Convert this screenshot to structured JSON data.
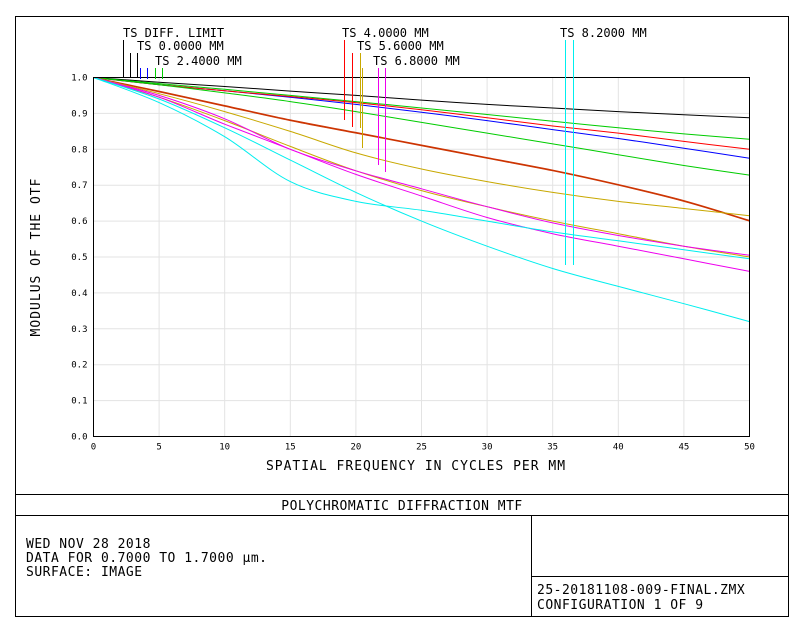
{
  "chart_data": {
    "type": "line",
    "title": "POLYCHROMATIC DIFFRACTION MTF",
    "xlabel": "SPATIAL FREQUENCY IN CYCLES PER MM",
    "ylabel": "MODULUS OF THE OTF",
    "xlim": [
      0,
      50
    ],
    "ylim": [
      0,
      1
    ],
    "grid": true,
    "x_ticks": [
      "0",
      "5",
      "10",
      "15",
      "20",
      "25",
      "30",
      "35",
      "40",
      "45",
      "50"
    ],
    "y_ticks": [
      "0.0",
      "0.1",
      "0.2",
      "0.3",
      "0.4",
      "0.5",
      "0.6",
      "0.7",
      "0.8",
      "0.9",
      "1.0"
    ],
    "x": [
      0,
      5,
      10,
      15,
      20,
      25,
      30,
      35,
      40,
      45,
      50
    ],
    "series": [
      {
        "color": "#000000",
        "values": [
          1.0,
          0.987,
          0.975,
          0.962,
          0.95,
          0.937,
          0.925,
          0.915,
          0.905,
          0.896,
          0.888
        ]
      },
      {
        "color": "#0000ff",
        "values": [
          1.0,
          0.98,
          0.963,
          0.945,
          0.925,
          0.903,
          0.88,
          0.855,
          0.83,
          0.803,
          0.775
        ]
      },
      {
        "color": "#ff0000",
        "values": [
          1.0,
          0.98,
          0.963,
          0.947,
          0.93,
          0.91,
          0.888,
          0.865,
          0.845,
          0.822,
          0.8
        ]
      },
      {
        "color": "#00cc00",
        "values": [
          1.0,
          0.983,
          0.967,
          0.95,
          0.933,
          0.915,
          0.897,
          0.878,
          0.86,
          0.843,
          0.828
        ]
      },
      {
        "color": "#00cc00",
        "values": [
          1.0,
          0.98,
          0.957,
          0.933,
          0.905,
          0.875,
          0.845,
          0.815,
          0.785,
          0.755,
          0.728
        ]
      },
      {
        "color": "#cc3300",
        "values": [
          1.0,
          0.96,
          0.92,
          0.88,
          0.845,
          0.81,
          0.775,
          0.74,
          0.7,
          0.655,
          0.6
        ]
      },
      {
        "color": "#cc3300",
        "values": [
          1.0,
          0.962,
          0.922,
          0.882,
          0.847,
          0.812,
          0.777,
          0.742,
          0.702,
          0.657,
          0.602
        ]
      },
      {
        "color": "#c8a800",
        "values": [
          1.0,
          0.955,
          0.905,
          0.85,
          0.79,
          0.745,
          0.71,
          0.68,
          0.655,
          0.635,
          0.615
        ]
      },
      {
        "color": "#c8a800",
        "values": [
          1.0,
          0.945,
          0.88,
          0.808,
          0.74,
          0.685,
          0.64,
          0.6,
          0.565,
          0.53,
          0.5
        ]
      },
      {
        "color": "#ee00ee",
        "values": [
          1.0,
          0.95,
          0.885,
          0.8,
          0.74,
          0.69,
          0.64,
          0.595,
          0.56,
          0.53,
          0.505
        ]
      },
      {
        "color": "#ee00ee",
        "values": [
          1.0,
          0.945,
          0.87,
          0.8,
          0.73,
          0.67,
          0.61,
          0.565,
          0.53,
          0.495,
          0.46
        ]
      },
      {
        "color": "#00eeee",
        "values": [
          1.0,
          0.93,
          0.835,
          0.71,
          0.655,
          0.63,
          0.6,
          0.57,
          0.545,
          0.52,
          0.495
        ]
      },
      {
        "color": "#00eeee",
        "values": [
          1.0,
          0.94,
          0.86,
          0.77,
          0.68,
          0.6,
          0.53,
          0.468,
          0.418,
          0.37,
          0.32
        ]
      }
    ],
    "legend": [
      {
        "label": "TS DIFF. LIMIT",
        "colors": [
          "#000000"
        ]
      },
      {
        "label": "TS 0.0000 MM",
        "colors": [
          "#000000",
          "#000000"
        ]
      },
      {
        "label": "TS 2.4000 MM",
        "colors": [
          "#0000ff",
          "#0000ff",
          "#00cc00",
          "#00cc00"
        ]
      },
      {
        "label": "TS 4.0000 MM",
        "colors": [
          "#ff0000"
        ]
      },
      {
        "label": "TS 5.6000 MM",
        "colors": [
          "#ff0000",
          "#c8a800"
        ]
      },
      {
        "label": "TS 6.8000 MM",
        "colors": [
          "#c8a800",
          "#ee00ee",
          "#ee00ee"
        ]
      },
      {
        "label": "TS 8.2000 MM",
        "colors": [
          "#00eeee",
          "#00eeee"
        ]
      }
    ]
  },
  "footer": {
    "title": "POLYCHROMATIC DIFFRACTION MTF",
    "date": "WED NOV 28 2018",
    "data_range": "DATA FOR 0.7000 TO 1.7000 µm.",
    "surface": "SURFACE: IMAGE",
    "filename": "25-20181108-009-FINAL.ZMX",
    "configuration": "CONFIGURATION 1 OF 9"
  }
}
